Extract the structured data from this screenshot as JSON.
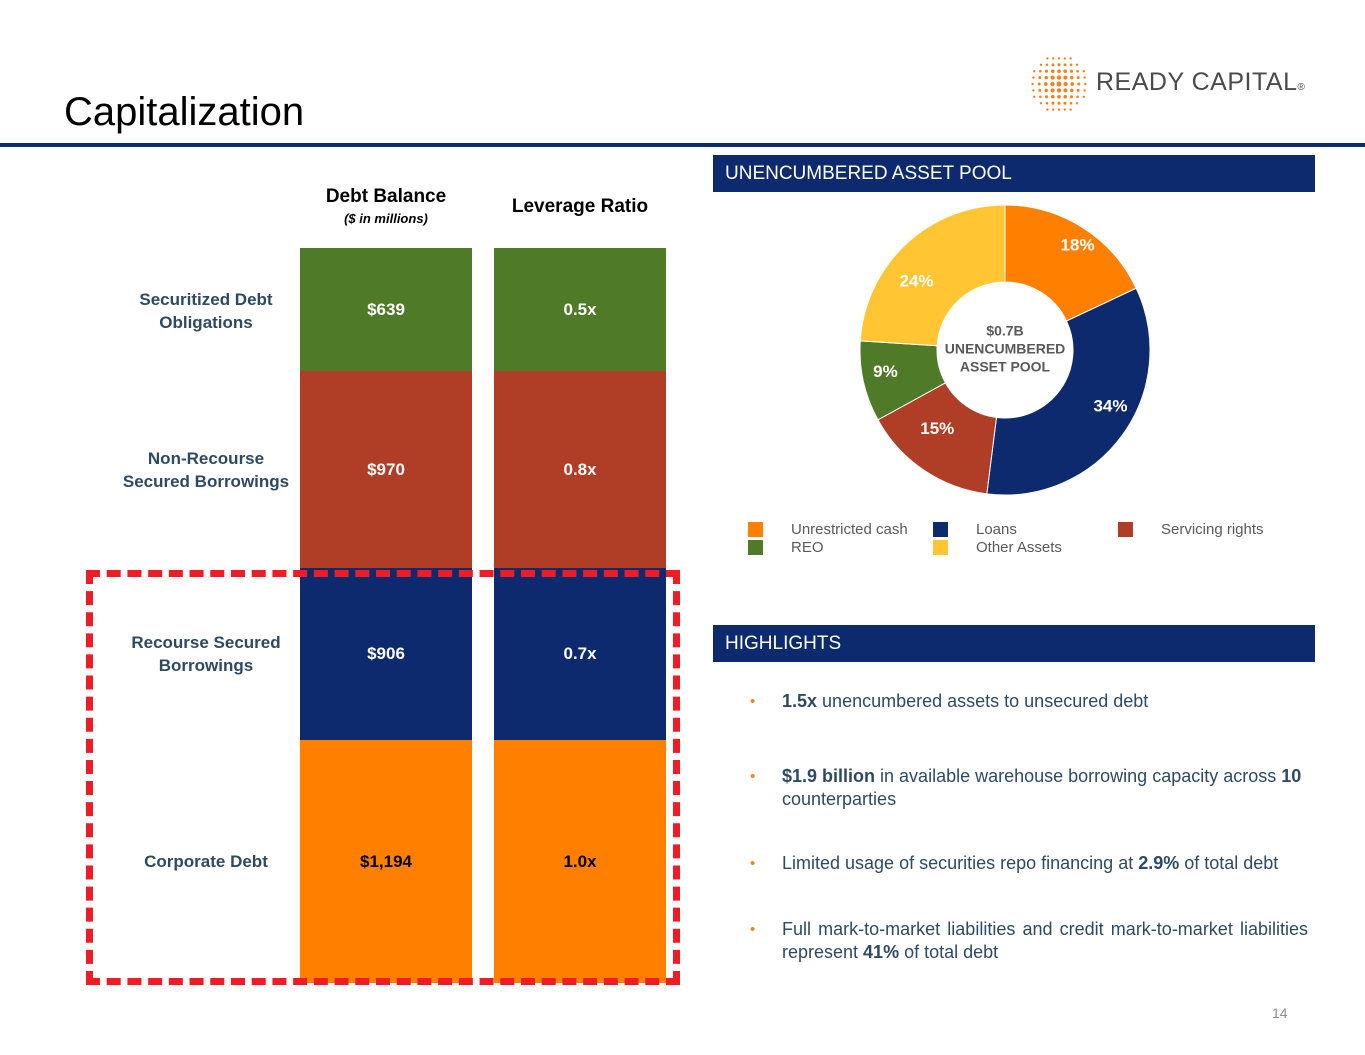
{
  "header": {
    "title": "Capitalization",
    "logo_text": "READY CAPITAL",
    "logo_reg": "®"
  },
  "colors": {
    "navy": "#0d2a6e",
    "green": "#4f7a28",
    "red": "#b03d26",
    "orange": "#ff8000",
    "yellow": "#ffc533",
    "label_blue": "#2e4a62",
    "dash_red": "#ee1c25",
    "bullet_orange": "#f5821f"
  },
  "chart_data": [
    {
      "type": "bar",
      "title": "Debt Balance",
      "subtitle": "($ in millions)",
      "columns": [
        "Debt Balance",
        "Leverage Ratio"
      ],
      "categories": [
        "Securitized Debt Obligations",
        "Non-Recourse Secured Borrowings",
        "Recourse Secured Borrowings",
        "Corporate Debt"
      ],
      "row_labels": [
        [
          "Securitized Debt",
          "Obligations"
        ],
        [
          "Non-Recourse",
          "Secured Borrowings"
        ],
        [
          "Recourse Secured",
          "Borrowings"
        ],
        [
          "Corporate Debt"
        ]
      ],
      "values": [
        639,
        970,
        906,
        1194
      ],
      "value_labels": [
        "$639",
        "$970",
        "$906",
        "$1,194"
      ],
      "leverage_labels": [
        "0.5x",
        "0.8x",
        "0.7x",
        "1.0x"
      ],
      "leverage_title": "Leverage Ratio",
      "stacked": true
    },
    {
      "type": "pie",
      "title": "UNENCUMBERED ASSET POOL",
      "center_label": [
        "$0.7B",
        "UNENCUMBERED",
        "ASSET POOL"
      ],
      "slices": [
        {
          "name": "Unrestricted cash",
          "value": 18,
          "label": "18%",
          "color": "#ff8000"
        },
        {
          "name": "Loans",
          "value": 34,
          "label": "34%",
          "color": "#0d2a6e"
        },
        {
          "name": "Servicing rights",
          "value": 15,
          "label": "15%",
          "color": "#b03d26"
        },
        {
          "name": "REO",
          "value": 9,
          "label": "9%",
          "color": "#4f7a28"
        },
        {
          "name": "Other Assets",
          "value": 24,
          "label": "24%",
          "color": "#ffc533"
        }
      ],
      "legend": [
        "Unrestricted cash",
        "Loans",
        "Servicing rights",
        "REO",
        "Other Assets"
      ]
    }
  ],
  "highlights": {
    "title": "HIGHLIGHTS",
    "items": [
      {
        "bold1": "1.5x",
        "text1": " unencumbered assets to unsecured debt"
      },
      {
        "bold1": "$1.9 billion",
        "text1": " in available warehouse borrowing capacity across ",
        "bold2": "10",
        "text2": " counterparties"
      },
      {
        "text0": "Limited usage of securities repo financing at ",
        "bold1": "2.9%",
        "text1": " of total debt"
      },
      {
        "text0": "Full mark-to-market liabilities and credit mark-to-market liabilities represent ",
        "bold1": "41%",
        "text1": " of total debt"
      }
    ]
  },
  "footer": {
    "page_number": "14"
  }
}
